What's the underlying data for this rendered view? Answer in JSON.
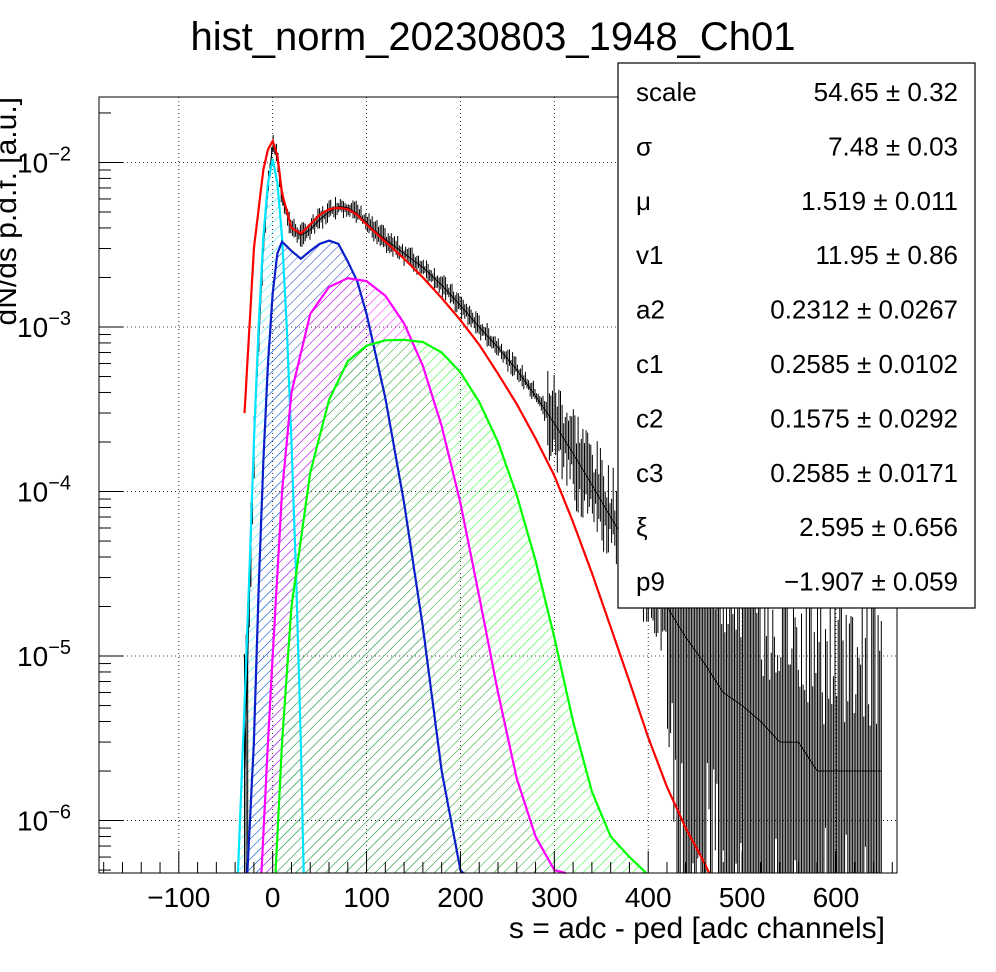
{
  "chart_data": {
    "type": "line",
    "title": "hist_norm_20230803_1948_Ch01",
    "xlabel": "s = adc - ped [adc channels]",
    "ylabel": "dN/ds p.d.f. [a.u.]",
    "x_scale": "linear",
    "y_scale": "log",
    "xlim": [
      -185,
      665
    ],
    "ylim": [
      4.8e-07,
      0.025
    ],
    "grid": true,
    "x_ticks": [
      -100,
      0,
      100,
      200,
      300,
      400,
      500,
      600
    ],
    "x_tick_labels": [
      "−100",
      "0",
      "100",
      "200",
      "300",
      "400",
      "500",
      "600"
    ],
    "y_ticks": [
      {
        "value": 1e-06,
        "base": "10",
        "exp": "−6"
      },
      {
        "value": 1e-05,
        "base": "10",
        "exp": "−5"
      },
      {
        "value": 0.0001,
        "base": "10",
        "exp": "−4"
      },
      {
        "value": 0.001,
        "base": "10",
        "exp": "−3"
      },
      {
        "value": 0.01,
        "base": "10",
        "exp": "−2"
      }
    ],
    "series": [
      {
        "kind": "histogram",
        "color": "#000000",
        "x": [
          -30,
          -20,
          -10,
          -5,
          0,
          5,
          10,
          20,
          30,
          40,
          50,
          60,
          70,
          80,
          90,
          100,
          110,
          120,
          140,
          160,
          180,
          200,
          220,
          240,
          260,
          280,
          300,
          320,
          340,
          360,
          380,
          400,
          420,
          440,
          460,
          480,
          500,
          520,
          540,
          560,
          580,
          600,
          620,
          650
        ],
        "y": [
          2e-06,
          0.0002,
          0.003,
          0.007,
          0.013,
          0.0105,
          0.006,
          0.004,
          0.0036,
          0.0039,
          0.0045,
          0.005,
          0.0054,
          0.0053,
          0.0049,
          0.0043,
          0.0038,
          0.0034,
          0.0028,
          0.0023,
          0.0018,
          0.00135,
          0.001,
          0.00075,
          0.00055,
          0.00038,
          0.00026,
          0.00017,
          0.00011,
          7e-05,
          4.5e-05,
          3e-05,
          2e-05,
          1.3e-05,
          9e-06,
          6e-06,
          5e-06,
          4e-06,
          3e-06,
          3e-06,
          2e-06,
          2e-06,
          2e-06,
          2e-06
        ]
      },
      {
        "kind": "fit-total",
        "color": "#ff0000",
        "x": [
          -30,
          -20,
          -10,
          -5,
          0,
          5,
          10,
          20,
          30,
          40,
          50,
          60,
          70,
          80,
          90,
          100,
          120,
          140,
          160,
          180,
          200,
          220,
          240,
          260,
          280,
          300,
          320,
          340,
          360,
          380,
          400,
          420,
          440,
          460,
          465
        ],
        "y": [
          0.0003,
          0.003,
          0.009,
          0.012,
          0.0135,
          0.011,
          0.0065,
          0.004,
          0.0037,
          0.0042,
          0.0048,
          0.0052,
          0.0053,
          0.0052,
          0.0048,
          0.0042,
          0.0033,
          0.0026,
          0.002,
          0.0015,
          0.0011,
          0.00078,
          0.00052,
          0.00034,
          0.00021,
          0.000125,
          6.5e-05,
          3.2e-05,
          1.5e-05,
          7e-06,
          3.2e-06,
          1.6e-06,
          9e-07,
          5.5e-07,
          4.8e-07
        ]
      },
      {
        "kind": "component",
        "color": "#00e5ff",
        "fill": true,
        "x": [
          -37,
          -30,
          -25,
          -20,
          -15,
          -10,
          -5,
          0,
          5,
          10,
          15,
          20,
          25,
          30,
          33
        ],
        "y": [
          4.8e-07,
          5e-06,
          3e-05,
          0.0002,
          0.001,
          0.0035,
          0.0075,
          0.0105,
          0.0075,
          0.0035,
          0.001,
          0.0002,
          3e-05,
          3e-06,
          4.8e-07
        ]
      },
      {
        "kind": "component",
        "color": "#0a1fc8",
        "fill": true,
        "x": [
          -27,
          -20,
          -15,
          -10,
          -5,
          0,
          5,
          10,
          20,
          30,
          40,
          50,
          60,
          70,
          80,
          90,
          100,
          120,
          140,
          160,
          180,
          200,
          203
        ],
        "y": [
          4.8e-07,
          3e-06,
          2.5e-05,
          0.00015,
          0.0006,
          0.0016,
          0.0028,
          0.0033,
          0.0029,
          0.0026,
          0.0029,
          0.0032,
          0.00335,
          0.0032,
          0.0025,
          0.0019,
          0.0012,
          0.00037,
          8.5e-05,
          1.5e-05,
          2e-06,
          5e-07,
          4.8e-07
        ]
      },
      {
        "kind": "component",
        "color": "#ff00ff",
        "fill": true,
        "x": [
          -12,
          -5,
          0,
          10,
          20,
          40,
          60,
          80,
          100,
          120,
          140,
          160,
          180,
          200,
          220,
          240,
          260,
          280,
          300,
          312
        ],
        "y": [
          4.8e-07,
          3e-06,
          1e-05,
          0.0001,
          0.0004,
          0.0012,
          0.00175,
          0.00198,
          0.0019,
          0.00155,
          0.00105,
          0.00058,
          0.00025,
          8.5e-05,
          2.3e-05,
          6e-06,
          1.8e-06,
          8e-07,
          5e-07,
          4.8e-07
        ]
      },
      {
        "kind": "component",
        "color": "#00ff00",
        "fill": true,
        "x": [
          3,
          10,
          20,
          40,
          60,
          80,
          100,
          120,
          140,
          160,
          180,
          200,
          220,
          240,
          260,
          280,
          300,
          320,
          340,
          360,
          380,
          398
        ],
        "y": [
          4.8e-07,
          3e-06,
          2e-05,
          0.00013,
          0.00036,
          0.00062,
          0.00077,
          0.00083,
          0.000835,
          0.00081,
          0.0007,
          0.00053,
          0.00035,
          0.0002,
          9.5e-05,
          3.8e-05,
          1.3e-05,
          4e-06,
          1.5e-06,
          8e-07,
          6e-07,
          4.8e-07
        ]
      }
    ],
    "stats_box": [
      {
        "name": "scale",
        "value": "54.65 ± 0.32"
      },
      {
        "name": "σ",
        "value": "7.48 ± 0.03"
      },
      {
        "name": "μ",
        "value": "1.519 ± 0.011"
      },
      {
        "name": "v1",
        "value": "11.95 ± 0.86"
      },
      {
        "name": "a2",
        "value": "0.2312 ± 0.0267"
      },
      {
        "name": "c1",
        "value": "0.2585 ± 0.0102"
      },
      {
        "name": "c2",
        "value": "0.1575 ± 0.0292"
      },
      {
        "name": "c3",
        "value": "0.2585 ± 0.0171"
      },
      {
        "name": "ξ",
        "value": "2.595 ± 0.656"
      },
      {
        "name": "p9",
        "value": "−1.907 ± 0.059"
      }
    ]
  }
}
